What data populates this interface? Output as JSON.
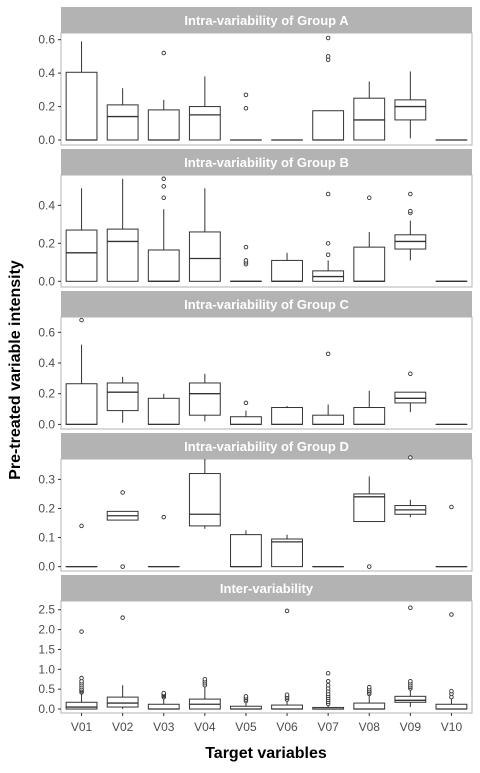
{
  "chart_data": {
    "type": "boxplot",
    "xlabel": "Target variables",
    "ylabel": "Pre-treated variable intensity",
    "categories": [
      "V01",
      "V02",
      "V03",
      "V04",
      "V05",
      "V06",
      "V07",
      "V08",
      "V09",
      "V10"
    ],
    "colors": {
      "strip": "#b3b3b3",
      "strip_text": "#ffffff",
      "panel_border": "#b3b3b3",
      "box": "#333333",
      "axis_text": "#4d4d4d"
    },
    "panels": [
      {
        "title": "Intra-variability of Group A",
        "ylim": [
          -0.03,
          0.64
        ],
        "yticks": [
          0.0,
          0.2,
          0.4,
          0.6
        ],
        "ytick_labels": [
          "0.0",
          "0.2",
          "0.4",
          "0.6"
        ],
        "boxes": [
          {
            "q1": 0.0,
            "median": 0.0,
            "q3": 0.405,
            "wlo": 0.0,
            "whi": 0.59,
            "outliers": []
          },
          {
            "q1": 0.0,
            "median": 0.14,
            "q3": 0.21,
            "wlo": 0.0,
            "whi": 0.31,
            "outliers": []
          },
          {
            "q1": 0.0,
            "median": 0.0,
            "q3": 0.18,
            "wlo": 0.0,
            "whi": 0.24,
            "outliers": [
              0.52
            ]
          },
          {
            "q1": 0.0,
            "median": 0.15,
            "q3": 0.2,
            "wlo": 0.0,
            "whi": 0.38,
            "outliers": []
          },
          {
            "q1": 0.0,
            "median": 0.0,
            "q3": 0.0,
            "wlo": 0.0,
            "whi": 0.0,
            "outliers": [
              0.19,
              0.27
            ]
          },
          {
            "q1": 0.0,
            "median": 0.0,
            "q3": 0.0,
            "wlo": 0.0,
            "whi": 0.0,
            "outliers": []
          },
          {
            "q1": 0.0,
            "median": 0.0,
            "q3": 0.175,
            "wlo": 0.0,
            "whi": 0.175,
            "outliers": [
              0.48,
              0.5,
              0.61
            ]
          },
          {
            "q1": 0.0,
            "median": 0.12,
            "q3": 0.25,
            "wlo": 0.0,
            "whi": 0.35,
            "outliers": []
          },
          {
            "q1": 0.12,
            "median": 0.2,
            "q3": 0.24,
            "wlo": 0.01,
            "whi": 0.41,
            "outliers": []
          },
          {
            "q1": 0.0,
            "median": 0.0,
            "q3": 0.0,
            "wlo": 0.0,
            "whi": 0.0,
            "outliers": []
          }
        ]
      },
      {
        "title": "Intra-variability of Group B",
        "ylim": [
          -0.03,
          0.56
        ],
        "yticks": [
          0.0,
          0.2,
          0.4
        ],
        "ytick_labels": [
          "0.0",
          "0.2",
          "0.4"
        ],
        "boxes": [
          {
            "q1": 0.0,
            "median": 0.15,
            "q3": 0.27,
            "wlo": 0.0,
            "whi": 0.49,
            "outliers": []
          },
          {
            "q1": 0.0,
            "median": 0.21,
            "q3": 0.275,
            "wlo": 0.0,
            "whi": 0.54,
            "outliers": []
          },
          {
            "q1": 0.0,
            "median": 0.0,
            "q3": 0.165,
            "wlo": 0.0,
            "whi": 0.38,
            "outliers": [
              0.44,
              0.5,
              0.54
            ]
          },
          {
            "q1": 0.0,
            "median": 0.12,
            "q3": 0.26,
            "wlo": 0.0,
            "whi": 0.49,
            "outliers": []
          },
          {
            "q1": 0.0,
            "median": 0.0,
            "q3": 0.0,
            "wlo": 0.0,
            "whi": 0.0,
            "outliers": [
              0.09,
              0.1,
              0.11,
              0.18
            ]
          },
          {
            "q1": 0.0,
            "median": 0.0,
            "q3": 0.11,
            "wlo": 0.0,
            "whi": 0.15,
            "outliers": []
          },
          {
            "q1": 0.0,
            "median": 0.025,
            "q3": 0.055,
            "wlo": 0.0,
            "whi": 0.11,
            "outliers": [
              0.14,
              0.2,
              0.46
            ]
          },
          {
            "q1": 0.0,
            "median": 0.0,
            "q3": 0.18,
            "wlo": 0.0,
            "whi": 0.26,
            "outliers": [
              0.44
            ]
          },
          {
            "q1": 0.17,
            "median": 0.21,
            "q3": 0.245,
            "wlo": 0.11,
            "whi": 0.32,
            "outliers": [
              0.36,
              0.37,
              0.46
            ]
          },
          {
            "q1": 0.0,
            "median": 0.0,
            "q3": 0.0,
            "wlo": 0.0,
            "whi": 0.0,
            "outliers": []
          }
        ]
      },
      {
        "title": "Intra-variability of Group C",
        "ylim": [
          -0.03,
          0.7
        ],
        "yticks": [
          0.0,
          0.2,
          0.4,
          0.6
        ],
        "ytick_labels": [
          "0.0",
          "0.2",
          "0.4",
          "0.6"
        ],
        "boxes": [
          {
            "q1": 0.0,
            "median": 0.0,
            "q3": 0.265,
            "wlo": 0.0,
            "whi": 0.52,
            "outliers": [
              0.68
            ]
          },
          {
            "q1": 0.09,
            "median": 0.21,
            "q3": 0.27,
            "wlo": 0.01,
            "whi": 0.31,
            "outliers": []
          },
          {
            "q1": 0.0,
            "median": 0.0,
            "q3": 0.17,
            "wlo": 0.0,
            "whi": 0.2,
            "outliers": []
          },
          {
            "q1": 0.06,
            "median": 0.2,
            "q3": 0.27,
            "wlo": 0.02,
            "whi": 0.33,
            "outliers": []
          },
          {
            "q1": 0.0,
            "median": 0.0,
            "q3": 0.05,
            "wlo": 0.0,
            "whi": 0.09,
            "outliers": [
              0.14
            ]
          },
          {
            "q1": 0.0,
            "median": 0.0,
            "q3": 0.11,
            "wlo": 0.0,
            "whi": 0.12,
            "outliers": []
          },
          {
            "q1": 0.0,
            "median": 0.0,
            "q3": 0.06,
            "wlo": 0.0,
            "whi": 0.13,
            "outliers": [
              0.46
            ]
          },
          {
            "q1": 0.0,
            "median": 0.0,
            "q3": 0.11,
            "wlo": 0.0,
            "whi": 0.22,
            "outliers": []
          },
          {
            "q1": 0.14,
            "median": 0.17,
            "q3": 0.21,
            "wlo": 0.08,
            "whi": 0.21,
            "outliers": [
              0.33
            ]
          },
          {
            "q1": 0.0,
            "median": 0.0,
            "q3": 0.0,
            "wlo": 0.0,
            "whi": 0.0,
            "outliers": []
          }
        ]
      },
      {
        "title": "Intra-variability of Group D",
        "ylim": [
          -0.015,
          0.37
        ],
        "yticks": [
          0.0,
          0.1,
          0.2,
          0.3
        ],
        "ytick_labels": [
          "0.0",
          "0.1",
          "0.2",
          "0.3"
        ],
        "boxes": [
          {
            "q1": 0.0,
            "median": 0.0,
            "q3": 0.0,
            "wlo": 0.0,
            "whi": 0.0,
            "outliers": [
              0.14
            ]
          },
          {
            "q1": 0.16,
            "median": 0.175,
            "q3": 0.19,
            "wlo": 0.16,
            "whi": 0.19,
            "outliers": [
              0.0,
              0.255
            ]
          },
          {
            "q1": 0.0,
            "median": 0.0,
            "q3": 0.0,
            "wlo": 0.0,
            "whi": 0.0,
            "outliers": [
              0.17
            ]
          },
          {
            "q1": 0.14,
            "median": 0.18,
            "q3": 0.32,
            "wlo": 0.13,
            "whi": 0.37,
            "outliers": []
          },
          {
            "q1": 0.0,
            "median": 0.0,
            "q3": 0.11,
            "wlo": 0.0,
            "whi": 0.125,
            "outliers": []
          },
          {
            "q1": 0.0,
            "median": 0.085,
            "q3": 0.095,
            "wlo": 0.0,
            "whi": 0.11,
            "outliers": []
          },
          {
            "q1": 0.0,
            "median": 0.0,
            "q3": 0.0,
            "wlo": 0.0,
            "whi": 0.0,
            "outliers": []
          },
          {
            "q1": 0.155,
            "median": 0.24,
            "q3": 0.25,
            "wlo": 0.155,
            "whi": 0.31,
            "outliers": [
              0.0
            ]
          },
          {
            "q1": 0.18,
            "median": 0.195,
            "q3": 0.21,
            "wlo": 0.17,
            "whi": 0.23,
            "outliers": [
              0.375
            ]
          },
          {
            "q1": 0.0,
            "median": 0.0,
            "q3": 0.0,
            "wlo": 0.0,
            "whi": 0.0,
            "outliers": [
              0.205
            ]
          }
        ]
      },
      {
        "title": "Inter-variability",
        "ylim": [
          -0.1,
          2.72
        ],
        "yticks": [
          0.0,
          0.5,
          1.0,
          1.5,
          2.0,
          2.5
        ],
        "ytick_labels": [
          "0.0",
          "0.5",
          "1.0",
          "1.5",
          "2.0",
          "2.5"
        ],
        "boxes": [
          {
            "q1": 0.0,
            "median": 0.05,
            "q3": 0.17,
            "wlo": 0.0,
            "whi": 0.4,
            "outliers": [
              0.42,
              0.45,
              0.48,
              0.5,
              0.55,
              0.6,
              0.65,
              0.7,
              0.78,
              1.95
            ]
          },
          {
            "q1": 0.05,
            "median": 0.15,
            "q3": 0.3,
            "wlo": 0.0,
            "whi": 0.6,
            "outliers": [
              2.3
            ]
          },
          {
            "q1": 0.0,
            "median": 0.0,
            "q3": 0.12,
            "wlo": 0.0,
            "whi": 0.28,
            "outliers": [
              0.3,
              0.33,
              0.36,
              0.38,
              0.4
            ]
          },
          {
            "q1": 0.0,
            "median": 0.12,
            "q3": 0.25,
            "wlo": 0.0,
            "whi": 0.55,
            "outliers": [
              0.6,
              0.65,
              0.7,
              0.75
            ]
          },
          {
            "q1": 0.0,
            "median": 0.0,
            "q3": 0.07,
            "wlo": 0.0,
            "whi": 0.18,
            "outliers": [
              0.2,
              0.24,
              0.28,
              0.32
            ]
          },
          {
            "q1": 0.0,
            "median": 0.0,
            "q3": 0.1,
            "wlo": 0.0,
            "whi": 0.2,
            "outliers": [
              0.24,
              0.28,
              0.32,
              0.36,
              2.47
            ]
          },
          {
            "q1": 0.0,
            "median": 0.0,
            "q3": 0.04,
            "wlo": 0.0,
            "whi": 0.1,
            "outliers": [
              0.13,
              0.18,
              0.23,
              0.28,
              0.33,
              0.38,
              0.45,
              0.52,
              0.6,
              0.7,
              0.9
            ]
          },
          {
            "q1": 0.0,
            "median": 0.0,
            "q3": 0.15,
            "wlo": 0.0,
            "whi": 0.35,
            "outliers": [
              0.38,
              0.42,
              0.46,
              0.5,
              0.55
            ]
          },
          {
            "q1": 0.17,
            "median": 0.22,
            "q3": 0.32,
            "wlo": 0.05,
            "whi": 0.48,
            "outliers": [
              0.52,
              0.56,
              0.6,
              0.65,
              0.7,
              2.55
            ]
          },
          {
            "q1": 0.0,
            "median": 0.0,
            "q3": 0.12,
            "wlo": 0.0,
            "whi": 0.25,
            "outliers": [
              0.3,
              0.38,
              0.45,
              2.38
            ]
          }
        ]
      }
    ]
  }
}
